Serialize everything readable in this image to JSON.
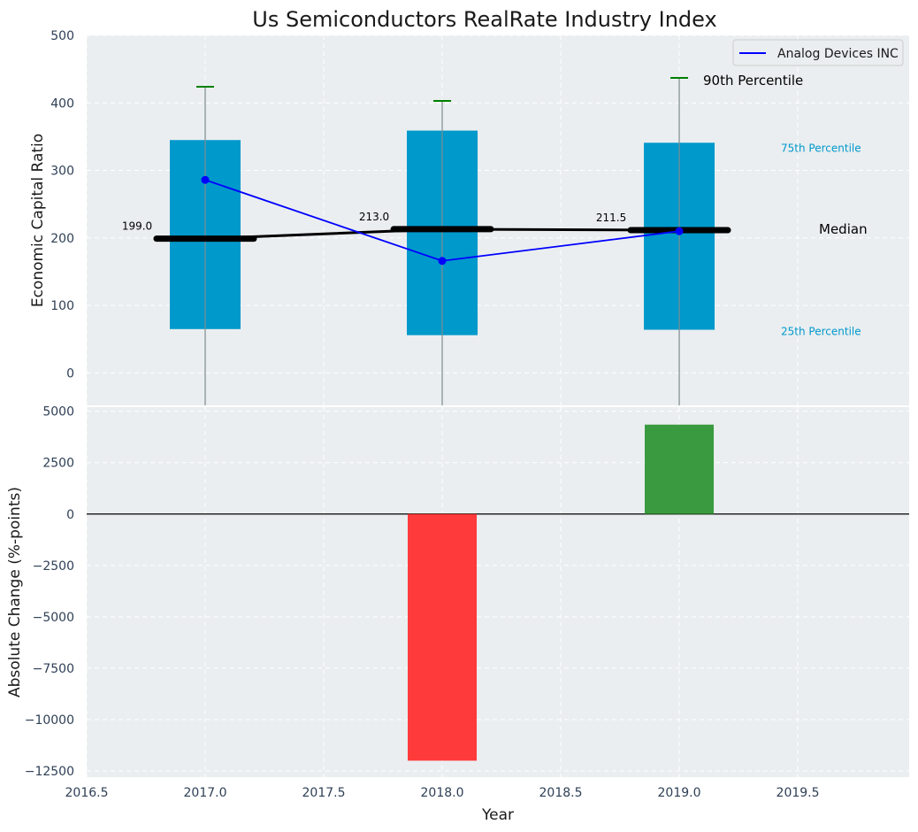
{
  "chart_data": [
    {
      "type": "box",
      "title": "Us Semiconductors RealRate Industry Index",
      "ylabel": "Economic Capital Ratio",
      "xlim": [
        2016.5,
        2019.97
      ],
      "ylim": [
        -48,
        500
      ],
      "yticks": [
        0,
        100,
        200,
        300,
        400,
        500
      ],
      "grid": true,
      "legend": {
        "position": "top-right",
        "entries": [
          "Analog Devices INC"
        ]
      },
      "colors": {
        "box": "#0099cc",
        "median": "#000000",
        "series": "#0000ff",
        "whisker_cap": "#008000",
        "whisker": "#7f8c8d",
        "background": "#eaeef0"
      },
      "x": [
        2017.0,
        2018.0,
        2019.0
      ],
      "percentile_25": [
        65,
        56,
        64
      ],
      "percentile_75": [
        345,
        359,
        341
      ],
      "median": [
        199.0,
        213.0,
        211.5
      ],
      "percentile_90": [
        424,
        403,
        437
      ],
      "median_labels": [
        "199.0",
        "213.0",
        "211.5"
      ],
      "series": [
        {
          "name": "Analog Devices INC",
          "values": [
            286,
            166,
            210
          ]
        }
      ],
      "annotations": {
        "p90": "90th Percentile",
        "p75": "75th Percentile",
        "median": "Median",
        "p25": "25th Percentile"
      }
    },
    {
      "type": "bar",
      "xlabel": "Year",
      "ylabel": "Absolute Change (%-points)",
      "x": [
        2018.0,
        2019.0
      ],
      "values": [
        -12000,
        4350
      ],
      "ylim": [
        -12800,
        5200
      ],
      "yticks": [
        -12500,
        -10000,
        -7500,
        -5000,
        -2500,
        0,
        2500,
        5000
      ],
      "ytick_labels": [
        "−12500",
        "−10000",
        "−7500",
        "−5000",
        "−2500",
        "0",
        "2500",
        "5000"
      ],
      "xticks": [
        2016.5,
        2017.0,
        2017.5,
        2018.0,
        2018.5,
        2019.0,
        2019.5
      ],
      "xtick_labels": [
        "2016.5",
        "2017.0",
        "2017.5",
        "2018.0",
        "2018.5",
        "2019.0",
        "2019.5"
      ],
      "colors": {
        "positive": "#2a9330",
        "negative": "#ff2a2a"
      },
      "grid": true
    }
  ]
}
